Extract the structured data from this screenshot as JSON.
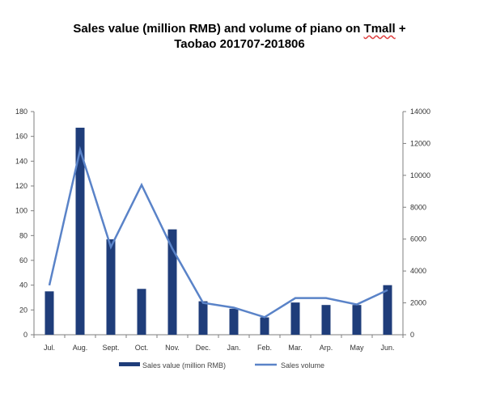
{
  "title": {
    "line1": "Sales value (million RMB) and volume of piano on Tmall +",
    "line2": "Taobao 201707-201806"
  },
  "colors": {
    "bar": "#1f3d7a",
    "line": "#5a83c8",
    "axis": "#7f7f7f",
    "spellcheck_underline": "#e04040"
  },
  "chart_data": {
    "type": "bar",
    "categories": [
      "Jul.",
      "Aug.",
      "Sept.",
      "Oct.",
      "Nov.",
      "Dec.",
      "Jan.",
      "Feb.",
      "Mar.",
      "Arp.",
      "May",
      "Jun."
    ],
    "series": [
      {
        "name": "Sales value (million RMB)",
        "type": "bar",
        "axis": "left",
        "values": [
          35,
          167,
          77,
          37,
          85,
          27,
          21,
          14,
          26,
          24,
          24,
          40
        ]
      },
      {
        "name": "Sales volume",
        "type": "line",
        "axis": "right",
        "values": [
          3100,
          11600,
          5500,
          9400,
          5400,
          2000,
          1700,
          1100,
          2300,
          2300,
          1900,
          2800
        ]
      }
    ],
    "left_axis": {
      "ylim": [
        0,
        180
      ],
      "ticks": [
        "0",
        "20",
        "40",
        "60",
        "80",
        "100",
        "120",
        "140",
        "160",
        "180"
      ]
    },
    "right_axis": {
      "ylim": [
        0,
        14000
      ],
      "ticks": [
        "0",
        "2000",
        "4000",
        "6000",
        "8000",
        "10000",
        "12000",
        "14000"
      ]
    },
    "grid": false,
    "legend_position": "bottom"
  }
}
